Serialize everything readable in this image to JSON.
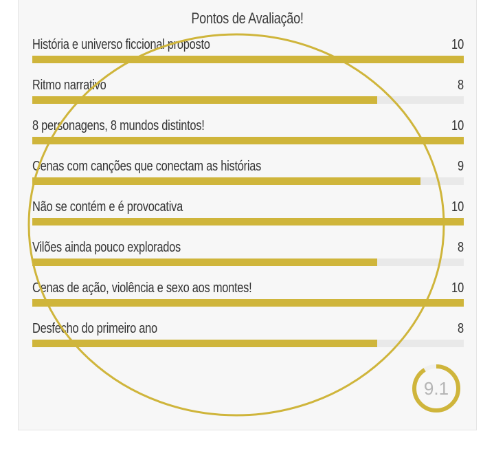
{
  "review": {
    "title": "Pontos de Avaliação!",
    "accent_color": "#cfb53b",
    "track_color": "#e9e9e9",
    "max_score": 10,
    "criteria": [
      {
        "label": "História e universo ficcional proposto",
        "score": 10
      },
      {
        "label": "Ritmo narrativo",
        "score": 8
      },
      {
        "label": "8 personagens, 8 mundos distintos!",
        "score": 10
      },
      {
        "label": "Cenas com canções que conectam as histórias",
        "score": 9
      },
      {
        "label": "Não se contém e é provocativa",
        "score": 10
      },
      {
        "label": "Vilões ainda pouco explorados",
        "score": 8
      },
      {
        "label": "Cenas de ação, violência e sexo aos montes!",
        "score": 10
      },
      {
        "label": "Desfecho do primeiro ano",
        "score": 8
      }
    ],
    "total": {
      "value": "9.1",
      "score": 9.1
    }
  }
}
